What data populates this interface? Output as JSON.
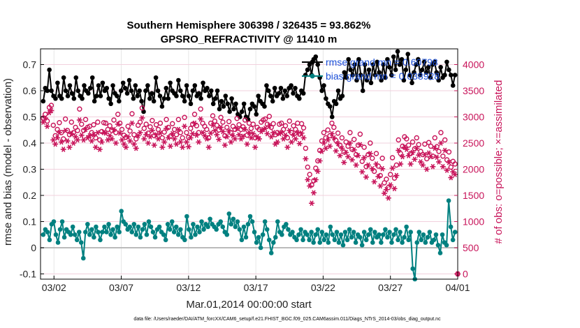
{
  "chart_data": {
    "type": "line",
    "title": "Southern Hemisphere 306398 / 326435 = 93.862%",
    "subtitle": "GPSRO_REFRACTIVITY @ 11410 m",
    "xlabel": "Mar.01,2014 00:00:00 start",
    "ylabel": "rmse and bias (model - observation)",
    "ylabel_right": "# of obs: o=possible; ×=assimilated",
    "footer": "data file: /Users/raeder/DAI/ATM_forcXX/CAM6_setup/f.e21.FHIST_BGC.f09_025.CAM6assim.011/Diags_NTrS_2014-03/obs_diag_output.nc",
    "x_tick_labels": [
      "03/02",
      "03/07",
      "03/12",
      "03/17",
      "03/22",
      "03/27",
      "04/01"
    ],
    "x_tick_days": [
      1,
      6,
      11,
      16,
      21,
      26,
      31
    ],
    "xlim_days": [
      0,
      31
    ],
    "ylim": [
      -0.12,
      0.76
    ],
    "y_ticks": [
      -0.1,
      0,
      0.1,
      0.2,
      0.3,
      0.4,
      0.5,
      0.6,
      0.7
    ],
    "y_tick_labels": [
      "-0.1",
      "0",
      "0.1",
      "0.2",
      "0.3",
      "0.4",
      "0.5",
      "0.6",
      "0.7"
    ],
    "ylim_right": [
      -100,
      4300
    ],
    "y_ticks_right": [
      0,
      500,
      1000,
      1500,
      2000,
      2500,
      3000,
      3500,
      4000
    ],
    "y_tick_labels_right": [
      "0",
      "500",
      "1000",
      "1500",
      "2000",
      "2500",
      "3000",
      "3500",
      "4000"
    ],
    "grid": true,
    "legend_position": "top-right",
    "series": [
      {
        "name": "rmse grand mn = 0.60798",
        "axis": "left",
        "color": "#000000",
        "values": [
          0.56,
          0.61,
          0.6,
          0.68,
          0.6,
          0.58,
          0.57,
          0.63,
          0.58,
          0.57,
          0.65,
          0.6,
          0.58,
          0.62,
          0.59,
          0.57,
          0.65,
          0.6,
          0.58,
          0.57,
          0.62,
          0.6,
          0.59,
          0.61,
          0.65,
          0.56,
          0.58,
          0.62,
          0.58,
          0.63,
          0.6,
          0.61,
          0.57,
          0.55,
          0.62,
          0.59,
          0.58,
          0.56,
          0.6,
          0.63,
          0.61,
          0.59,
          0.64,
          0.6,
          0.57,
          0.62,
          0.58,
          0.6,
          0.56,
          0.52,
          0.6,
          0.62,
          0.57,
          0.59,
          0.56,
          0.65,
          0.6,
          0.58,
          0.54,
          0.57,
          0.61,
          0.57,
          0.63,
          0.6,
          0.59,
          0.58,
          0.64,
          0.6,
          0.58,
          0.56,
          0.62,
          0.58,
          0.55,
          0.6,
          0.62,
          0.58,
          0.59,
          0.57,
          0.63,
          0.6,
          0.61,
          0.58,
          0.6,
          0.55,
          0.57,
          0.6,
          0.53,
          0.56,
          0.54,
          0.58,
          0.55,
          0.52,
          0.57,
          0.53,
          0.55,
          0.51,
          0.5,
          0.52,
          0.55,
          0.5,
          0.49,
          0.53,
          0.55,
          0.54,
          0.51,
          0.58,
          0.56,
          0.55,
          0.54,
          0.62,
          0.6,
          0.58,
          0.56,
          0.61,
          0.58,
          0.59,
          0.61,
          0.57,
          0.6,
          0.58,
          0.61,
          0.62,
          0.59,
          0.61,
          0.58,
          0.57,
          0.6,
          0.59,
          0.66,
          0.68,
          0.7,
          0.66,
          0.72,
          0.73,
          0.7,
          0.65,
          0.6,
          0.62,
          0.57,
          0.55,
          0.54,
          0.5,
          0.56,
          0.55,
          0.6,
          0.57,
          0.58,
          0.67,
          0.65,
          0.72,
          0.68,
          0.66,
          0.7,
          0.64,
          0.72,
          0.66,
          0.6,
          0.7,
          0.64,
          0.68,
          0.63,
          0.7,
          0.66,
          0.71,
          0.67,
          0.64,
          0.7,
          0.65,
          0.72,
          0.69,
          0.66,
          0.73,
          0.68,
          0.75,
          0.7,
          0.72,
          0.64,
          0.68,
          0.74,
          0.66,
          0.63,
          0.67,
          0.7,
          0.72,
          0.66,
          0.68,
          0.71,
          0.67,
          0.69,
          0.65,
          0.7,
          0.71,
          0.67,
          0.64,
          0.69,
          0.65,
          0.66,
          0.71,
          0.68,
          0.66,
          0.62,
          0.66
        ]
      },
      {
        "name": "bias grand mn = 0.038928",
        "axis": "left",
        "color": "#008080",
        "values": [
          0.05,
          0.07,
          0.06,
          0.03,
          0.09,
          0.1,
          0.05,
          0.02,
          0.07,
          0.1,
          0.04,
          0.07,
          0.06,
          0.05,
          0.08,
          0.05,
          0.03,
          0.06,
          0.02,
          -0.04,
          0.06,
          0.09,
          0.05,
          0.07,
          0.04,
          0.08,
          0.06,
          0.03,
          0.06,
          0.08,
          0.06,
          0.09,
          0.05,
          0.07,
          0.04,
          0.08,
          0.06,
          0.14,
          0.1,
          0.09,
          0.07,
          0.08,
          0.06,
          0.09,
          0.05,
          0.08,
          0.04,
          0.07,
          0.09,
          0.05,
          0.1,
          0.08,
          0.06,
          0.04,
          0.07,
          0.08,
          0.06,
          0.05,
          0.03,
          0.09,
          0.07,
          0.1,
          0.06,
          0.08,
          0.05,
          0.07,
          0.04,
          0.03,
          0.12,
          0.07,
          0.04,
          0.09,
          0.05,
          0.08,
          0.06,
          0.1,
          0.07,
          0.09,
          0.08,
          0.11,
          0.09,
          0.08,
          0.07,
          0.09,
          0.1,
          0.08,
          0.06,
          0.05,
          0.13,
          0.09,
          0.11,
          0.08,
          0.1,
          0.07,
          0.03,
          0.08,
          0.04,
          0.09,
          0.12,
          0.1,
          0.06,
          0.02,
          0.04,
          0.0,
          0.05,
          0.1,
          0.07,
          0.03,
          -0.02,
          0.02,
          0.04,
          0.1,
          0.06,
          0.05,
          0.08,
          0.09,
          0.07,
          0.05,
          0.06,
          0.04,
          0.03,
          0.05,
          0.07,
          0.03,
          0.06,
          0.05,
          0.03,
          0.06,
          0.02,
          0.05,
          0.07,
          0.02,
          0.06,
          0.03,
          0.05,
          0.02,
          0.08,
          0.05,
          0.03,
          0.06,
          0.02,
          0.05,
          0.01,
          0.06,
          0.03,
          0.07,
          0.04,
          0.06,
          0.02,
          0.05,
          0.04,
          0.01,
          0.06,
          0.03,
          0.05,
          0.07,
          0.02,
          0.06,
          0.04,
          0.05,
          0.02,
          0.05,
          0.07,
          0.04,
          0.06,
          0.02,
          0.05,
          0.07,
          0.03,
          0.06,
          0.02,
          0.04,
          0.08,
          0.03,
          0.06,
          -0.08,
          -0.12,
          0.02,
          0.06,
          0.03,
          0.05,
          0.02,
          0.04,
          0.06,
          0.02,
          0.03,
          0.05,
          0.01,
          -0.02,
          0.05,
          0.02,
          0.01,
          0.18,
          0.08,
          0.03,
          0.06
        ]
      },
      {
        "name": "possible",
        "axis": "right",
        "color": "#c8145a",
        "marker": "o",
        "values": [
          2980,
          3050,
          2920,
          3180,
          3220,
          2840,
          2640,
          2760,
          2890,
          2700,
          2580,
          2960,
          2740,
          2660,
          2900,
          2700,
          2800,
          2740,
          3150,
          2860,
          2740,
          2950,
          2800,
          2820,
          2700,
          2850,
          2600,
          2900,
          2560,
          2720,
          2890,
          2880,
          2760,
          2830,
          2740,
          2940,
          2700,
          3050,
          2880,
          2760,
          2650,
          2610,
          2820,
          2730,
          3060,
          2660,
          2580,
          2840,
          2900,
          3170,
          2780,
          2860,
          2690,
          2810,
          2930,
          2640,
          2850,
          2760,
          2880,
          2600,
          2710,
          2950,
          2800,
          2630,
          2870,
          2760,
          2660,
          2950,
          2700,
          2600,
          2990,
          2700,
          2610,
          2780,
          2860,
          3050,
          2830,
          2700,
          3150,
          2880,
          2820,
          2760,
          2600,
          2880,
          3020,
          2920,
          2840,
          2750,
          2990,
          2900,
          2640,
          2800,
          2910,
          2700,
          2820,
          2760,
          2970,
          2850,
          2760,
          2810,
          2940,
          2650,
          2880,
          2780,
          2860,
          2600,
          2800,
          2760,
          2900,
          2940,
          2960,
          2860,
          3010,
          2800,
          2870,
          2660,
          2700,
          2860,
          2880,
          2760,
          2830,
          2600,
          2920,
          2700,
          2830,
          2760,
          2880,
          2670,
          2870,
          2790,
          2400,
          2040,
          1900,
          1700,
          1780,
          2020,
          2160,
          2360,
          2540,
          2700,
          2600,
          2750,
          2640,
          2880,
          2800,
          2550,
          2690,
          2460,
          2600,
          2330,
          2520,
          2440,
          2700,
          2380,
          2570,
          2280,
          2460,
          2670,
          2150,
          2420,
          2050,
          2280,
          2500,
          2210,
          1960,
          2300,
          2060,
          1880,
          2210,
          1740,
          1810,
          1650,
          1900,
          2220,
          1830,
          2080,
          2560,
          2300,
          2440,
          2620,
          2580,
          2460,
          2300,
          2520,
          2390,
          2600,
          2470,
          2340,
          2280,
          2480,
          2200,
          2510,
          2440,
          2250,
          2600,
          2430,
          2340,
          2700,
          2250,
          2560,
          2180,
          2330,
          2040,
          2150,
          2100
        ]
      },
      {
        "name": "assimilated",
        "axis": "right",
        "color": "#c8145a",
        "marker": "*",
        "values": [
          2900,
          2980,
          2820,
          3080,
          3120,
          2560,
          2480,
          2600,
          2700,
          2520,
          2380,
          2740,
          2540,
          2420,
          2680,
          2500,
          2620,
          2560,
          2940,
          2650,
          2560,
          2760,
          2600,
          2640,
          2540,
          2660,
          2420,
          2700,
          2380,
          2520,
          2700,
          2690,
          2560,
          2640,
          2580,
          2760,
          2500,
          2860,
          2690,
          2560,
          2480,
          2420,
          2620,
          2540,
          2880,
          2480,
          2400,
          2640,
          2700,
          2980,
          2580,
          2660,
          2500,
          2620,
          2740,
          2460,
          2660,
          2580,
          2690,
          2420,
          2520,
          2780,
          2600,
          2440,
          2680,
          2580,
          2480,
          2760,
          2520,
          2420,
          2820,
          2520,
          2430,
          2600,
          2680,
          2880,
          2650,
          2520,
          2960,
          2700,
          2640,
          2580,
          2420,
          2690,
          2840,
          2740,
          2660,
          2570,
          2800,
          2720,
          2460,
          2620,
          2730,
          2520,
          2640,
          2580,
          2780,
          2660,
          2580,
          2630,
          2760,
          2480,
          2700,
          2600,
          2680,
          2420,
          2620,
          2580,
          2720,
          2760,
          2780,
          2680,
          2830,
          2620,
          2700,
          2480,
          2520,
          2680,
          2700,
          2580,
          2650,
          2420,
          2740,
          2520,
          2650,
          2580,
          2700,
          2490,
          2690,
          2600,
          2200,
          1800,
          1680,
          1350,
          1550,
          1800,
          1960,
          2160,
          2340,
          2500,
          2400,
          2560,
          2440,
          2680,
          2600,
          2350,
          2490,
          2260,
          2400,
          2130,
          2320,
          2240,
          2500,
          2180,
          2370,
          2080,
          2260,
          2470,
          1950,
          2220,
          1850,
          2080,
          2300,
          2010,
          1760,
          2100,
          1860,
          1680,
          2010,
          1540,
          1610,
          1450,
          1700,
          2020,
          1630,
          1880,
          2360,
          2100,
          2240,
          2420,
          2380,
          2260,
          2100,
          2320,
          2190,
          2400,
          2270,
          2140,
          2080,
          2280,
          2000,
          2310,
          2240,
          2050,
          2400,
          2230,
          2140,
          2500,
          2050,
          2360,
          1980,
          2130,
          1840,
          1950,
          1900
        ]
      }
    ],
    "extra_points": [
      {
        "series": "possible",
        "x_day": 31.0,
        "value": 0
      },
      {
        "series": "assimilated",
        "x_day": 31.0,
        "value": 0
      }
    ]
  }
}
